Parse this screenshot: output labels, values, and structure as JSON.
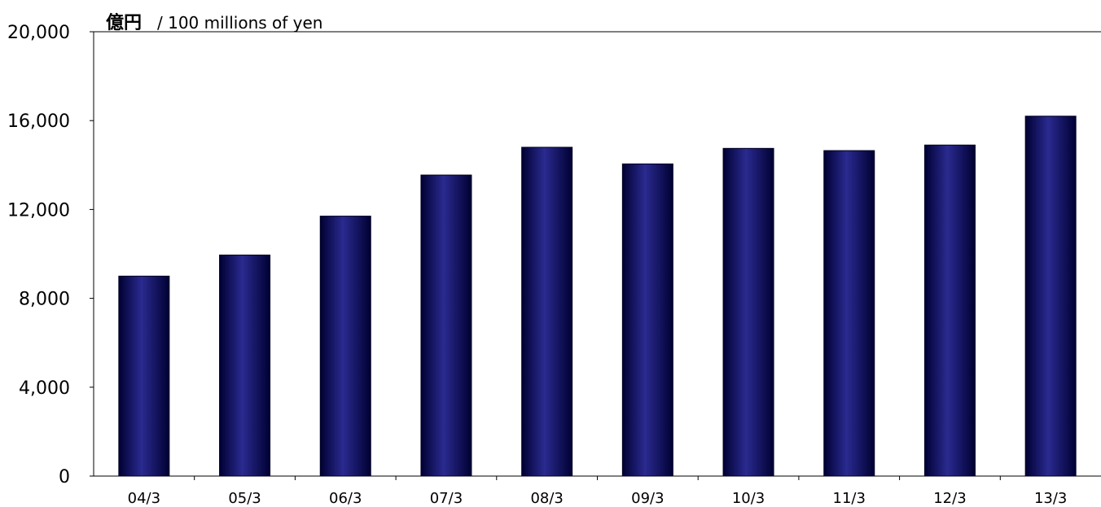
{
  "chart_data": {
    "type": "bar",
    "title": "",
    "unit_label_main": "億円",
    "unit_label_sub": "/ 100 millions of yen",
    "xlabel": "",
    "ylabel": "",
    "categories": [
      "04/3",
      "05/3",
      "06/3",
      "07/3",
      "08/3",
      "09/3",
      "10/3",
      "11/3",
      "12/3",
      "13/3"
    ],
    "values": [
      9000,
      9950,
      11700,
      13550,
      14800,
      14050,
      14750,
      14650,
      14900,
      16200
    ],
    "ylim": [
      0,
      20000
    ],
    "yticks": [
      "0",
      "4,000",
      "8,000",
      "12,000",
      "16,000",
      "20,000"
    ],
    "grid": false,
    "bar_color_dark": "#000033",
    "bar_color_mid": "#1a1a78",
    "bar_color_light": "#2a2a90"
  }
}
